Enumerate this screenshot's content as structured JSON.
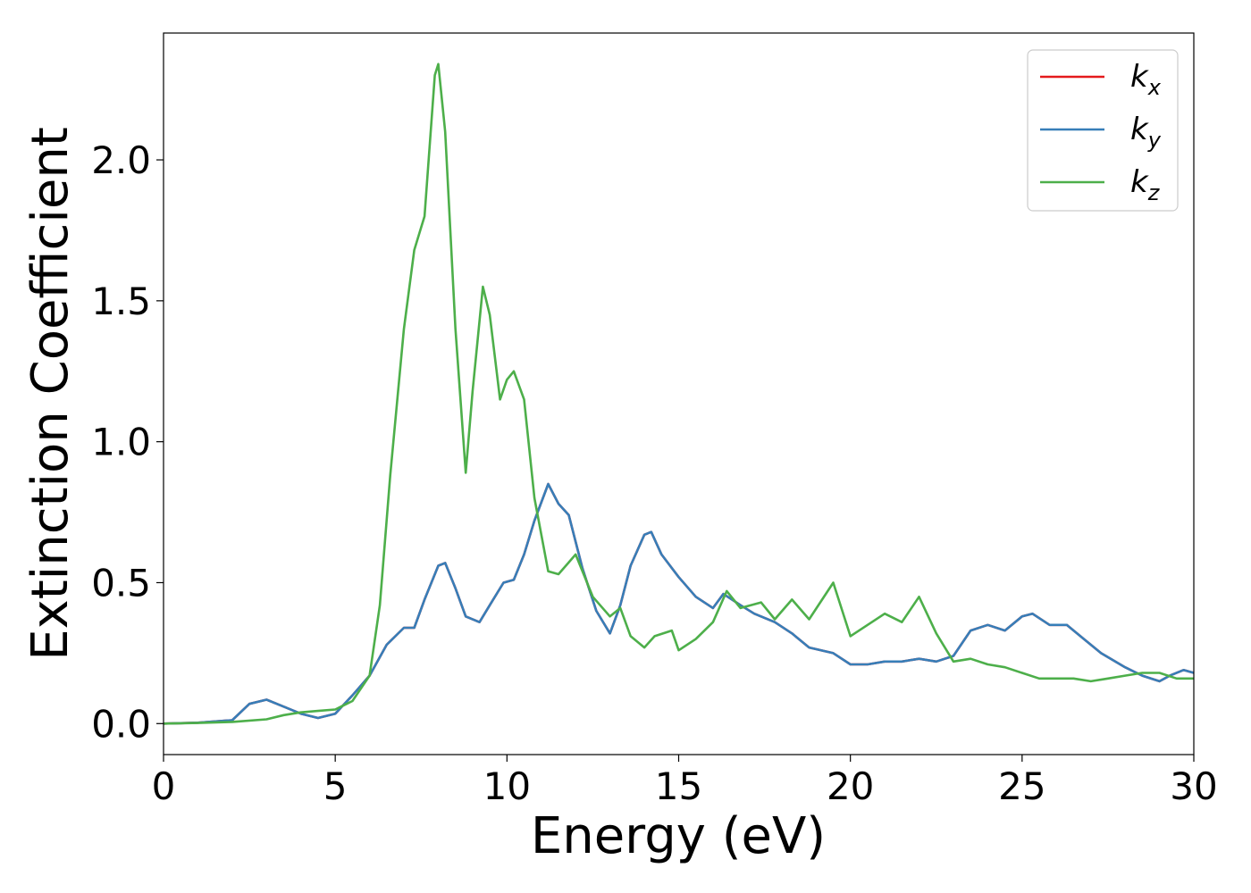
{
  "chart_data": {
    "type": "line",
    "xlabel": "Energy (eV)",
    "ylabel": "Extinction Coefficient",
    "xlim": [
      0,
      30
    ],
    "ylim": [
      -0.11,
      2.45
    ],
    "xticks": [
      0,
      5,
      10,
      15,
      20,
      25,
      30
    ],
    "yticks": [
      0.0,
      0.5,
      1.0,
      1.5,
      2.0
    ],
    "xtick_labels": [
      "0",
      "5",
      "10",
      "15",
      "20",
      "25",
      "30"
    ],
    "ytick_labels": [
      "0.0",
      "0.5",
      "1.0",
      "1.5",
      "2.0"
    ],
    "grid": false,
    "legend_position": "top-right",
    "series": [
      {
        "name": "k_x",
        "label_base": "k",
        "label_sub": "x",
        "color": "#e41a1c",
        "x": [
          0,
          1,
          2,
          2.5,
          3,
          3.5,
          4,
          4.5,
          5,
          5.5,
          6,
          6.5,
          7,
          7.3,
          7.6,
          8,
          8.2,
          8.5,
          8.8,
          9.2,
          9.5,
          9.9,
          10.2,
          10.5,
          10.8,
          11.2,
          11.5,
          11.8,
          12.2,
          12.6,
          13,
          13.3,
          13.6,
          14,
          14.2,
          14.5,
          15,
          15.5,
          16,
          16.3,
          16.8,
          17.2,
          17.8,
          18.3,
          18.8,
          19.5,
          20,
          20.5,
          21,
          21.5,
          22,
          22.5,
          23,
          23.5,
          24,
          24.5,
          25,
          25.3,
          25.8,
          26.3,
          26.8,
          27.3,
          28,
          28.5,
          29,
          29.3,
          29.7,
          30
        ],
        "y": [
          0,
          0.003,
          0.012,
          0.07,
          0.085,
          0.06,
          0.035,
          0.02,
          0.035,
          0.1,
          0.17,
          0.28,
          0.34,
          0.34,
          0.44,
          0.56,
          0.57,
          0.48,
          0.38,
          0.36,
          0.42,
          0.5,
          0.51,
          0.6,
          0.72,
          0.85,
          0.78,
          0.74,
          0.55,
          0.4,
          0.32,
          0.42,
          0.56,
          0.67,
          0.68,
          0.6,
          0.52,
          0.45,
          0.41,
          0.46,
          0.42,
          0.39,
          0.36,
          0.32,
          0.27,
          0.25,
          0.21,
          0.21,
          0.22,
          0.22,
          0.23,
          0.22,
          0.24,
          0.33,
          0.35,
          0.33,
          0.38,
          0.39,
          0.35,
          0.35,
          0.3,
          0.25,
          0.2,
          0.17,
          0.15,
          0.17,
          0.19,
          0.18
        ]
      },
      {
        "name": "k_y",
        "label_base": "k",
        "label_sub": "y",
        "color": "#377eb8",
        "x": [
          0,
          1,
          2,
          2.5,
          3,
          3.5,
          4,
          4.5,
          5,
          5.5,
          6,
          6.5,
          7,
          7.3,
          7.6,
          8,
          8.2,
          8.5,
          8.8,
          9.2,
          9.5,
          9.9,
          10.2,
          10.5,
          10.8,
          11.2,
          11.5,
          11.8,
          12.2,
          12.6,
          13,
          13.3,
          13.6,
          14,
          14.2,
          14.5,
          15,
          15.5,
          16,
          16.3,
          16.8,
          17.2,
          17.8,
          18.3,
          18.8,
          19.5,
          20,
          20.5,
          21,
          21.5,
          22,
          22.5,
          23,
          23.5,
          24,
          24.5,
          25,
          25.3,
          25.8,
          26.3,
          26.8,
          27.3,
          28,
          28.5,
          29,
          29.3,
          29.7,
          30
        ],
        "y": [
          0,
          0.003,
          0.012,
          0.07,
          0.085,
          0.06,
          0.035,
          0.02,
          0.035,
          0.1,
          0.17,
          0.28,
          0.34,
          0.34,
          0.44,
          0.56,
          0.57,
          0.48,
          0.38,
          0.36,
          0.42,
          0.5,
          0.51,
          0.6,
          0.72,
          0.85,
          0.78,
          0.74,
          0.55,
          0.4,
          0.32,
          0.42,
          0.56,
          0.67,
          0.68,
          0.6,
          0.52,
          0.45,
          0.41,
          0.46,
          0.42,
          0.39,
          0.36,
          0.32,
          0.27,
          0.25,
          0.21,
          0.21,
          0.22,
          0.22,
          0.23,
          0.22,
          0.24,
          0.33,
          0.35,
          0.33,
          0.38,
          0.39,
          0.35,
          0.35,
          0.3,
          0.25,
          0.2,
          0.17,
          0.15,
          0.17,
          0.19,
          0.18
        ]
      },
      {
        "name": "k_z",
        "label_base": "k",
        "label_sub": "z",
        "color": "#4daf4a",
        "x": [
          0,
          1,
          2,
          3,
          3.5,
          4,
          4.5,
          5,
          5.5,
          6,
          6.3,
          6.6,
          7,
          7.3,
          7.6,
          7.9,
          8,
          8.2,
          8.5,
          8.8,
          9,
          9.3,
          9.5,
          9.8,
          10,
          10.2,
          10.5,
          10.8,
          11.2,
          11.5,
          12,
          12.5,
          13,
          13.3,
          13.6,
          14,
          14.3,
          14.8,
          15,
          15.5,
          16,
          16.4,
          16.8,
          17.4,
          17.8,
          18.3,
          18.8,
          19.5,
          20,
          20.5,
          21,
          21.5,
          22,
          22.5,
          23,
          23.5,
          24,
          24.5,
          25,
          25.5,
          26,
          26.5,
          27,
          27.5,
          28,
          28.5,
          29,
          29.5,
          30
        ],
        "y": [
          0,
          0.002,
          0.006,
          0.015,
          0.03,
          0.04,
          0.045,
          0.05,
          0.08,
          0.17,
          0.42,
          0.88,
          1.4,
          1.68,
          1.8,
          2.3,
          2.34,
          2.1,
          1.4,
          0.89,
          1.18,
          1.55,
          1.45,
          1.15,
          1.22,
          1.25,
          1.15,
          0.8,
          0.54,
          0.53,
          0.6,
          0.45,
          0.38,
          0.41,
          0.31,
          0.27,
          0.31,
          0.33,
          0.26,
          0.3,
          0.36,
          0.47,
          0.41,
          0.43,
          0.37,
          0.44,
          0.37,
          0.5,
          0.31,
          0.35,
          0.39,
          0.36,
          0.45,
          0.32,
          0.22,
          0.23,
          0.21,
          0.2,
          0.18,
          0.16,
          0.16,
          0.16,
          0.15,
          0.16,
          0.17,
          0.18,
          0.18,
          0.16,
          0.16
        ]
      }
    ]
  }
}
